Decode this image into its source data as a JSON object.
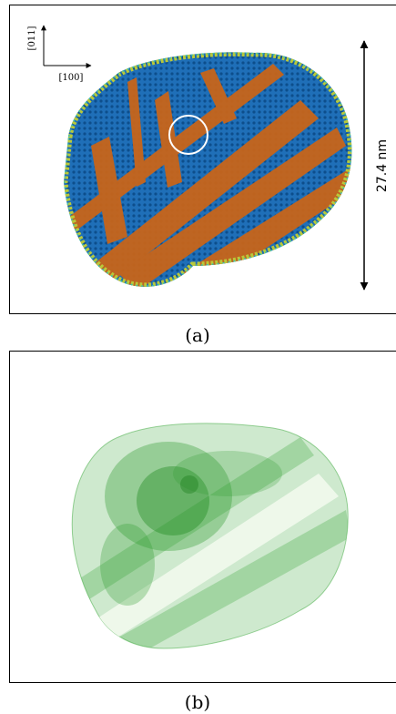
{
  "panels": [
    {
      "label": "(a)",
      "scale_bar": "27.4 nm",
      "axes": {
        "vertical": "[011]",
        "horizontal": "[100]"
      }
    },
    {
      "label": "(b)"
    }
  ]
}
